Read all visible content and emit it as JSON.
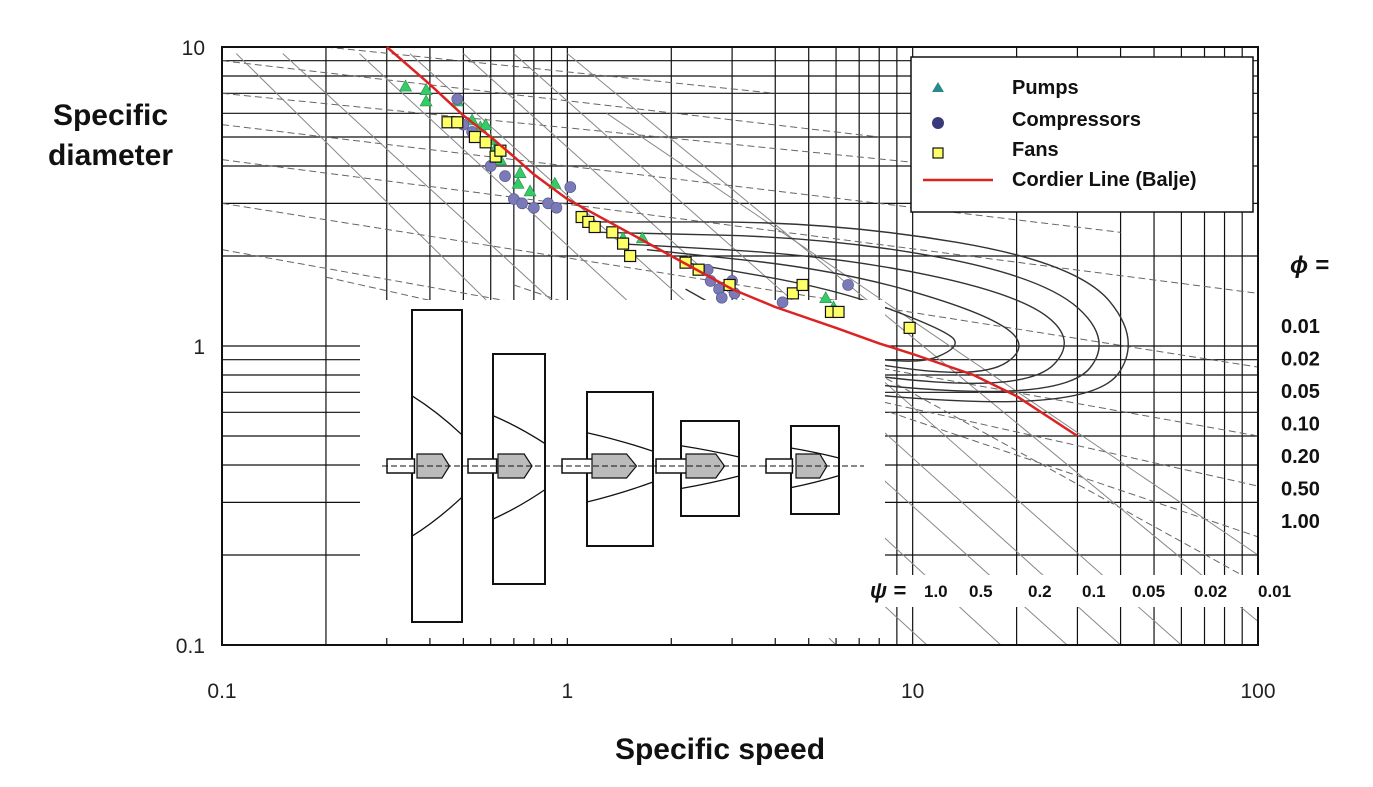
{
  "chart_data": {
    "type": "scatter",
    "x_scale": "log",
    "y_scale": "log",
    "xlim": [
      0.1,
      100
    ],
    "ylim": [
      0.1,
      10
    ],
    "x_ticks": [
      "0.1",
      "1",
      "10",
      "100"
    ],
    "y_ticks": [
      "0.1",
      "1",
      "10"
    ],
    "xlabel": "Specific speed",
    "ylabel": "Specific diameter",
    "grid": true,
    "legend_position": "top-right",
    "series": [
      {
        "name": "Pumps",
        "marker": "triangle",
        "color": "#33cc66",
        "points": [
          [
            0.34,
            7.4
          ],
          [
            0.39,
            7.2
          ],
          [
            0.39,
            6.6
          ],
          [
            0.48,
            6.6
          ],
          [
            0.53,
            5.7
          ],
          [
            0.56,
            5.4
          ],
          [
            0.58,
            5.5
          ],
          [
            0.6,
            4.9
          ],
          [
            0.62,
            4.6
          ],
          [
            0.64,
            4.2
          ],
          [
            0.72,
            3.5
          ],
          [
            0.73,
            3.8
          ],
          [
            0.78,
            3.3
          ],
          [
            0.92,
            3.5
          ],
          [
            1.45,
            2.3
          ],
          [
            1.65,
            2.3
          ],
          [
            5.6,
            1.45
          ],
          [
            5.9,
            1.35
          ]
        ]
      },
      {
        "name": "Compressors",
        "marker": "circle",
        "color": "#7a7ab8",
        "points": [
          [
            0.48,
            6.7
          ],
          [
            0.5,
            5.5
          ],
          [
            0.53,
            5.2
          ],
          [
            0.6,
            4.0
          ],
          [
            0.66,
            3.7
          ],
          [
            0.7,
            3.1
          ],
          [
            0.74,
            3.0
          ],
          [
            0.8,
            2.9
          ],
          [
            0.88,
            3.0
          ],
          [
            0.93,
            2.9
          ],
          [
            1.02,
            3.4
          ],
          [
            2.55,
            1.8
          ],
          [
            2.6,
            1.65
          ],
          [
            2.75,
            1.55
          ],
          [
            2.8,
            1.45
          ],
          [
            3.0,
            1.65
          ],
          [
            3.05,
            1.5
          ],
          [
            4.2,
            1.4
          ],
          [
            6.5,
            1.6
          ]
        ]
      },
      {
        "name": "Fans",
        "marker": "square",
        "color": "#ffff66",
        "points": [
          [
            0.45,
            5.6
          ],
          [
            0.48,
            5.6
          ],
          [
            0.54,
            5.0
          ],
          [
            0.58,
            4.8
          ],
          [
            0.62,
            4.3
          ],
          [
            0.64,
            4.5
          ],
          [
            1.1,
            2.7
          ],
          [
            1.15,
            2.6
          ],
          [
            1.2,
            2.5
          ],
          [
            1.35,
            2.4
          ],
          [
            1.45,
            2.2
          ],
          [
            1.52,
            2.0
          ],
          [
            2.2,
            1.9
          ],
          [
            2.4,
            1.8
          ],
          [
            2.95,
            1.6
          ],
          [
            4.5,
            1.5
          ],
          [
            4.8,
            1.6
          ],
          [
            5.8,
            1.3
          ],
          [
            6.1,
            1.3
          ],
          [
            9.8,
            1.15
          ]
        ]
      },
      {
        "name": "Cordier Line (Balje)",
        "marker": "line",
        "color": "#dd2222",
        "points": [
          [
            0.3,
            10.0
          ],
          [
            0.4,
            7.5
          ],
          [
            0.5,
            5.9
          ],
          [
            0.6,
            5.0
          ],
          [
            0.7,
            4.3
          ],
          [
            0.8,
            3.75
          ],
          [
            1.0,
            3.1
          ],
          [
            1.5,
            2.4
          ],
          [
            2.0,
            2.0
          ],
          [
            3.0,
            1.55
          ],
          [
            4.0,
            1.35
          ],
          [
            6.0,
            1.15
          ],
          [
            8.0,
            1.02
          ],
          [
            10.0,
            0.94
          ],
          [
            15.0,
            0.8
          ],
          [
            20.0,
            0.68
          ],
          [
            30.0,
            0.5
          ]
        ]
      }
    ],
    "phi_label": "ϕ =",
    "phi_values": [
      "0.01",
      "0.02",
      "0.05",
      "0.10",
      "0.20",
      "0.50",
      "1.00"
    ],
    "psi_label": "ψ =",
    "psi_values": [
      "1.0",
      "0.5",
      "0.2",
      "0.1",
      "0.05",
      "0.02",
      "0.01"
    ]
  }
}
